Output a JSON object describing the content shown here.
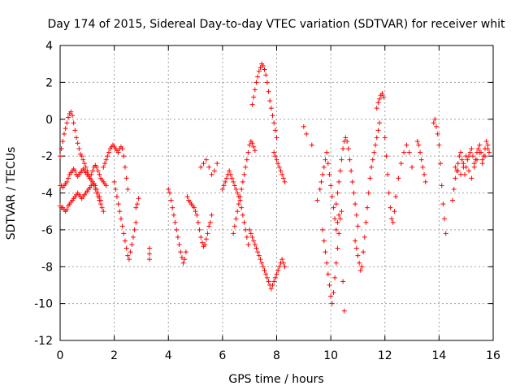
{
  "chart_data": {
    "type": "scatter",
    "title": "Day 174 of 2015, Sidereal Day-to-day VTEC variation (SDTVAR) for receiver whit",
    "xlabel": "GPS time / hours",
    "ylabel": "SDTVAR / TECUs",
    "xlim": [
      0,
      16
    ],
    "ylim": [
      -12,
      4
    ],
    "xticks": [
      0,
      2,
      4,
      6,
      8,
      10,
      12,
      14,
      16
    ],
    "yticks": [
      -12,
      -10,
      -8,
      -6,
      -4,
      -2,
      0,
      2,
      4
    ],
    "grid": true,
    "marker": "plus",
    "color": "#ff0000",
    "series": [
      {
        "name": "SDTVAR",
        "x": [
          0.0,
          0.05,
          0.1,
          0.15,
          0.2,
          0.25,
          0.3,
          0.35,
          0.4,
          0.45,
          0.5,
          0.55,
          0.6,
          0.65,
          0.7,
          0.75,
          0.8,
          0.85,
          0.9,
          0.95,
          1.0,
          1.05,
          1.1,
          1.15,
          1.2,
          1.25,
          1.3,
          1.35,
          1.4,
          1.45,
          1.5,
          1.55,
          1.6,
          0.0,
          0.05,
          0.1,
          0.15,
          0.2,
          0.25,
          0.3,
          0.35,
          0.4,
          0.45,
          0.5,
          0.55,
          0.6,
          0.65,
          0.7,
          0.75,
          0.8,
          0.85,
          0.9,
          0.95,
          1.0,
          1.05,
          1.1,
          1.15,
          1.2,
          1.25,
          1.3,
          1.35,
          1.4,
          1.45,
          1.5,
          1.55,
          1.6,
          1.65,
          1.7,
          0.0,
          0.05,
          0.1,
          0.15,
          0.2,
          0.25,
          0.3,
          0.35,
          0.4,
          0.45,
          0.5,
          0.55,
          0.6,
          0.65,
          0.7,
          0.75,
          0.8,
          0.85,
          0.9,
          0.95,
          1.0,
          1.05,
          1.1,
          1.15,
          1.2,
          1.25,
          1.3,
          1.35,
          1.4,
          1.45,
          1.5,
          1.6,
          1.65,
          1.7,
          1.75,
          1.8,
          1.85,
          1.9,
          1.95,
          2.0,
          2.05,
          2.1,
          2.15,
          2.2,
          2.25,
          2.3,
          2.35,
          2.4,
          2.45,
          2.5,
          2.0,
          2.05,
          2.1,
          2.15,
          2.2,
          2.25,
          2.3,
          2.35,
          2.4,
          2.45,
          2.5,
          2.55,
          2.6,
          2.65,
          2.7,
          2.75,
          2.8,
          2.8,
          2.85,
          2.9,
          3.3,
          3.3,
          3.3,
          4.0,
          4.05,
          4.1,
          4.15,
          4.2,
          4.25,
          4.3,
          4.35,
          4.4,
          4.45,
          4.5,
          4.55,
          4.6,
          4.65,
          4.7,
          4.75,
          4.8,
          4.85,
          4.9,
          4.95,
          5.0,
          5.05,
          5.1,
          5.15,
          5.2,
          5.25,
          5.3,
          5.35,
          5.4,
          5.45,
          5.5,
          5.55,
          5.6,
          5.2,
          5.3,
          5.4,
          5.5,
          5.6,
          5.7,
          5.8,
          6.0,
          6.05,
          6.1,
          6.15,
          6.2,
          6.25,
          6.3,
          6.35,
          6.4,
          6.45,
          6.5,
          6.55,
          6.6,
          6.65,
          6.7,
          6.75,
          6.8,
          6.85,
          6.9,
          6.95,
          6.4,
          6.45,
          6.5,
          6.55,
          6.6,
          6.65,
          6.7,
          6.75,
          6.8,
          6.85,
          6.9,
          6.95,
          7.0,
          7.05,
          7.1,
          7.15,
          7.2,
          7.1,
          7.15,
          7.2,
          7.25,
          7.3,
          7.35,
          7.4,
          7.45,
          7.5,
          7.55,
          7.6,
          7.65,
          7.7,
          7.75,
          7.8,
          7.85,
          7.9,
          7.95,
          8.0,
          7.0,
          7.05,
          7.1,
          7.15,
          7.2,
          7.25,
          7.3,
          7.35,
          7.4,
          7.45,
          7.5,
          7.55,
          7.6,
          7.65,
          7.7,
          7.75,
          7.8,
          7.85,
          7.9,
          7.95,
          8.0,
          8.05,
          8.1,
          8.15,
          8.2,
          8.25,
          8.3,
          7.9,
          7.95,
          8.0,
          8.05,
          8.1,
          8.15,
          8.2,
          8.25,
          8.3,
          9.0,
          9.1,
          9.3,
          9.5,
          9.7,
          9.75,
          9.8,
          9.85,
          9.9,
          9.95,
          10.0,
          10.05,
          10.1,
          10.15,
          10.2,
          10.25,
          10.3,
          10.35,
          10.4,
          10.45,
          10.5,
          9.6,
          9.65,
          9.7,
          9.75,
          9.8,
          9.85,
          9.9,
          9.95,
          10.0,
          10.05,
          10.1,
          10.15,
          10.2,
          10.25,
          10.3,
          10.2,
          10.25,
          10.3,
          10.35,
          10.4,
          10.45,
          10.5,
          10.55,
          10.6,
          10.65,
          10.7,
          10.75,
          10.8,
          10.85,
          10.9,
          10.95,
          11.0,
          10.9,
          10.95,
          11.0,
          11.05,
          11.1,
          11.15,
          11.2,
          11.25,
          11.3,
          11.35,
          11.4,
          11.45,
          11.5,
          11.55,
          11.6,
          11.65,
          11.7,
          11.75,
          11.8,
          11.7,
          11.75,
          11.8,
          11.85,
          11.9,
          11.95,
          12.0,
          12.05,
          12.1,
          12.15,
          12.2,
          12.25,
          12.3,
          12.35,
          12.4,
          12.5,
          12.6,
          12.7,
          12.8,
          12.9,
          13.0,
          13.2,
          13.25,
          13.3,
          13.35,
          13.4,
          13.45,
          13.5,
          13.8,
          13.85,
          13.9,
          13.95,
          14.0,
          14.05,
          14.1,
          14.15,
          14.2,
          14.25,
          14.5,
          14.55,
          14.6,
          14.65,
          14.7,
          14.75,
          14.8,
          14.85,
          14.9,
          14.95,
          15.0,
          15.05,
          15.1,
          15.15,
          15.2,
          15.25,
          15.3,
          15.35,
          15.4,
          15.45,
          15.5,
          15.55,
          15.6,
          15.65,
          15.7,
          15.75,
          15.8,
          15.85,
          14.6,
          14.7,
          14.8,
          14.9,
          15.0,
          15.1,
          15.2,
          15.3,
          15.4,
          15.5,
          15.6,
          15.7,
          15.8
        ],
        "y": [
          -2.0,
          -1.6,
          -1.2,
          -0.8,
          -0.5,
          -0.2,
          0.1,
          0.3,
          0.4,
          0.2,
          -0.2,
          -0.6,
          -1.0,
          -1.3,
          -1.6,
          -1.9,
          -2.0,
          -2.2,
          -2.4,
          -2.6,
          -2.8,
          -3.0,
          -3.2,
          -3.3,
          -3.4,
          -3.6,
          -3.8,
          -4.0,
          -4.2,
          -4.4,
          -4.6,
          -4.8,
          -5.0,
          -3.6,
          -3.6,
          -3.7,
          -3.6,
          -3.5,
          -3.4,
          -3.2,
          -3.0,
          -2.9,
          -2.8,
          -2.7,
          -2.8,
          -3.0,
          -3.1,
          -3.0,
          -2.9,
          -2.8,
          -2.7,
          -2.8,
          -2.9,
          -3.0,
          -3.1,
          -3.2,
          -3.0,
          -2.8,
          -2.6,
          -2.5,
          -2.6,
          -2.8,
          -3.0,
          -3.2,
          -3.3,
          -3.4,
          -3.5,
          -3.6,
          -4.7,
          -4.8,
          -4.8,
          -4.9,
          -5.0,
          -4.9,
          -4.7,
          -4.6,
          -4.5,
          -4.4,
          -4.3,
          -4.2,
          -4.1,
          -4.0,
          -4.1,
          -4.2,
          -4.3,
          -4.2,
          -4.1,
          -4.0,
          -3.9,
          -3.8,
          -3.7,
          -3.6,
          -3.5,
          -3.5,
          -3.6,
          -3.8,
          -4.0,
          -4.2,
          -4.4,
          -2.6,
          -2.4,
          -2.2,
          -2.0,
          -1.8,
          -1.6,
          -1.5,
          -1.4,
          -1.5,
          -1.6,
          -1.7,
          -1.8,
          -1.6,
          -1.5,
          -1.6,
          -2.0,
          -2.6,
          -3.2,
          -3.8,
          -3.4,
          -3.8,
          -4.2,
          -4.6,
          -5.0,
          -5.4,
          -5.8,
          -6.2,
          -6.6,
          -7.0,
          -7.4,
          -7.6,
          -7.2,
          -6.8,
          -6.4,
          -6.0,
          -5.6,
          -4.8,
          -4.6,
          -4.3,
          -7.0,
          -7.3,
          -7.6,
          -3.8,
          -4.0,
          -4.4,
          -4.8,
          -5.2,
          -5.6,
          -6.0,
          -6.4,
          -6.8,
          -7.2,
          -7.5,
          -7.8,
          -7.6,
          -7.2,
          -4.2,
          -4.4,
          -4.5,
          -4.6,
          -4.7,
          -4.8,
          -5.0,
          -5.2,
          -5.6,
          -6.0,
          -6.4,
          -6.7,
          -6.9,
          -6.8,
          -6.5,
          -6.2,
          -5.8,
          -5.6,
          -5.2,
          -2.6,
          -2.4,
          -2.2,
          -2.6,
          -3.0,
          -2.8,
          -2.4,
          -3.8,
          -3.6,
          -3.4,
          -3.2,
          -3.0,
          -2.8,
          -3.0,
          -3.2,
          -3.4,
          -3.6,
          -3.8,
          -4.0,
          -4.2,
          -4.4,
          -4.8,
          -5.2,
          -5.6,
          -6.0,
          -6.4,
          -6.8,
          -6.2,
          -5.8,
          -5.4,
          -5.0,
          -4.6,
          -4.2,
          -3.8,
          -3.4,
          -3.0,
          -2.6,
          -2.2,
          -1.8,
          -1.4,
          -1.2,
          -1.3,
          -1.5,
          -1.7,
          0.8,
          1.2,
          1.6,
          2.0,
          2.3,
          2.6,
          2.8,
          3.0,
          2.9,
          2.7,
          2.4,
          2.0,
          1.5,
          1.0,
          0.6,
          0.2,
          -0.2,
          -0.6,
          -1.0,
          -6.0,
          -6.2,
          -6.4,
          -6.6,
          -6.8,
          -7.0,
          -7.2,
          -7.4,
          -7.6,
          -7.8,
          -8.0,
          -8.2,
          -8.4,
          -8.6,
          -8.8,
          -9.0,
          -9.2,
          -9.0,
          -8.8,
          -8.6,
          -8.4,
          -8.2,
          -8.0,
          -7.8,
          -7.6,
          -7.8,
          -8.0,
          -1.8,
          -2.0,
          -2.2,
          -2.4,
          -2.6,
          -2.8,
          -3.0,
          -3.2,
          -3.4,
          -0.4,
          -0.8,
          -1.4,
          -4.4,
          -6.0,
          -6.6,
          -7.2,
          -7.8,
          -8.4,
          -9.0,
          -9.6,
          -10.0,
          -9.4,
          -8.6,
          -7.8,
          -7.0,
          -6.2,
          -5.4,
          -5.0,
          -8.8,
          -10.4,
          -3.8,
          -3.4,
          -3.0,
          -2.6,
          -2.2,
          -1.8,
          -2.4,
          -3.0,
          -3.6,
          -4.2,
          -4.8,
          -5.4,
          -6.0,
          -5.6,
          -5.2,
          -4.6,
          -4.0,
          -3.4,
          -2.8,
          -2.2,
          -1.6,
          -1.2,
          -1.0,
          -1.2,
          -1.6,
          -2.2,
          -2.8,
          -3.4,
          -4.0,
          -4.6,
          -5.2,
          -5.8,
          -6.6,
          -7.0,
          -7.4,
          -7.8,
          -8.2,
          -8.0,
          -7.2,
          -6.4,
          -5.6,
          -4.8,
          -4.0,
          -3.2,
          -2.6,
          -2.2,
          -1.8,
          -1.4,
          -1.0,
          -0.6,
          -0.2,
          0.6,
          0.9,
          1.1,
          1.3,
          1.4,
          1.2,
          -1.0,
          -2.0,
          -3.0,
          -4.0,
          -4.8,
          -5.4,
          -5.6,
          -5.0,
          -4.2,
          -3.2,
          -2.4,
          -1.8,
          -1.4,
          -1.8,
          -2.6,
          -1.2,
          -1.4,
          -1.8,
          -2.2,
          -2.6,
          -3.0,
          -3.4,
          -0.2,
          0.0,
          -0.4,
          -0.8,
          -1.4,
          -2.4,
          -3.6,
          -4.6,
          -5.4,
          -6.2,
          -4.4,
          -3.8,
          -3.2,
          -2.8,
          -2.4,
          -2.0,
          -1.8,
          -2.2,
          -2.6,
          -3.0,
          -2.6,
          -2.2,
          -2.0,
          -1.8,
          -1.6,
          -2.0,
          -2.4,
          -2.2,
          -1.8,
          -1.6,
          -1.4,
          -1.8,
          -2.2,
          -2.0,
          -1.6,
          -1.2,
          -1.4,
          -1.8,
          -2.6,
          -2.8,
          -3.0,
          -2.4,
          -2.0,
          -2.8,
          -3.2,
          -2.6,
          -2.2,
          -1.8,
          -2.4,
          -2.0,
          -1.6
        ]
      }
    ]
  }
}
